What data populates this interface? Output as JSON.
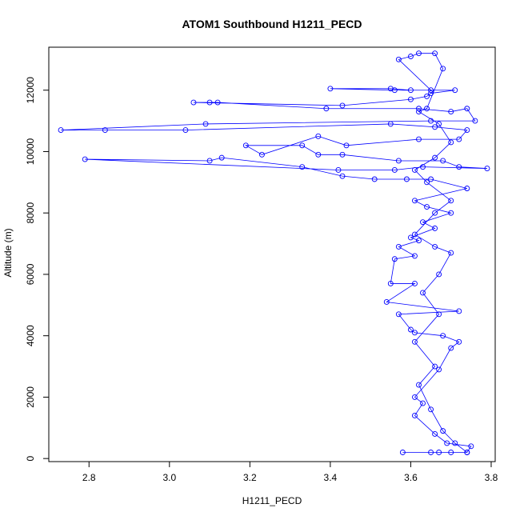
{
  "chart_data": {
    "type": "scatter",
    "title": "ATOM1 Southbound H1211_PECD",
    "xlabel": "H1211_PECD",
    "ylabel": "Altitude (m)",
    "xlim": [
      2.7,
      3.81
    ],
    "ylim": [
      -100,
      13400
    ],
    "x_ticks": [
      2.8,
      3.0,
      3.2,
      3.4,
      3.6,
      3.8
    ],
    "y_ticks": [
      0,
      2000,
      4000,
      6000,
      8000,
      10000,
      12000
    ],
    "x_tick_labels": [
      "2.8",
      "3.0",
      "3.2",
      "3.4",
      "3.6",
      "3.8"
    ],
    "y_tick_labels": [
      "0",
      "2000",
      "4000",
      "6000",
      "8000",
      "10000",
      "12000"
    ],
    "grid": false,
    "legend": "none",
    "series": [
      {
        "color": "#0000ff",
        "marker": "open-circle",
        "line": true,
        "points": [
          [
            3.58,
            200
          ],
          [
            3.65,
            200
          ],
          [
            3.67,
            200
          ],
          [
            3.7,
            200
          ],
          [
            3.74,
            200
          ],
          [
            3.75,
            400
          ],
          [
            3.69,
            500
          ],
          [
            3.66,
            800
          ],
          [
            3.61,
            1400
          ],
          [
            3.63,
            1800
          ],
          [
            3.61,
            2000
          ],
          [
            3.67,
            2900
          ],
          [
            3.7,
            3600
          ],
          [
            3.72,
            3800
          ],
          [
            3.68,
            4000
          ],
          [
            3.61,
            4100
          ],
          [
            3.6,
            4200
          ],
          [
            3.57,
            4700
          ],
          [
            3.72,
            4800
          ],
          [
            3.54,
            5100
          ],
          [
            3.61,
            5700
          ],
          [
            3.55,
            5700
          ],
          [
            3.56,
            6500
          ],
          [
            3.61,
            6600
          ],
          [
            3.57,
            6900
          ],
          [
            3.62,
            7100
          ],
          [
            3.6,
            7200
          ],
          [
            3.66,
            7500
          ],
          [
            3.63,
            7700
          ],
          [
            3.7,
            8000
          ],
          [
            3.64,
            8200
          ],
          [
            3.61,
            8400
          ],
          [
            3.74,
            8800
          ],
          [
            3.65,
            9100
          ],
          [
            3.59,
            9100
          ],
          [
            3.51,
            9100
          ],
          [
            3.43,
            9200
          ],
          [
            3.33,
            9500
          ],
          [
            3.13,
            9800
          ],
          [
            3.1,
            9700
          ],
          [
            2.79,
            9750
          ],
          [
            3.42,
            9400
          ],
          [
            3.56,
            9400
          ],
          [
            3.63,
            9500
          ],
          [
            3.79,
            9450
          ],
          [
            3.72,
            9500
          ],
          [
            3.68,
            9700
          ],
          [
            3.57,
            9700
          ],
          [
            3.43,
            9900
          ],
          [
            3.37,
            9900
          ],
          [
            3.33,
            10200
          ],
          [
            3.19,
            10200
          ],
          [
            3.23,
            9900
          ],
          [
            3.37,
            10500
          ],
          [
            3.44,
            10200
          ],
          [
            3.62,
            10400
          ],
          [
            3.72,
            10400
          ],
          [
            3.74,
            10700
          ],
          [
            3.66,
            10800
          ],
          [
            3.55,
            10900
          ],
          [
            3.04,
            10700
          ],
          [
            2.84,
            10700
          ],
          [
            2.73,
            10700
          ],
          [
            3.09,
            10900
          ],
          [
            3.65,
            11000
          ],
          [
            3.76,
            11000
          ],
          [
            3.74,
            11400
          ],
          [
            3.7,
            11300
          ],
          [
            3.62,
            11400
          ],
          [
            3.39,
            11400
          ],
          [
            3.12,
            11600
          ],
          [
            3.1,
            11600
          ],
          [
            3.06,
            11600
          ],
          [
            3.43,
            11500
          ],
          [
            3.6,
            11700
          ],
          [
            3.64,
            11800
          ],
          [
            3.65,
            11900
          ],
          [
            3.71,
            12000
          ],
          [
            3.6,
            12000
          ],
          [
            3.55,
            12050
          ],
          [
            3.4,
            12050
          ],
          [
            3.56,
            12000
          ],
          [
            3.65,
            12000
          ],
          [
            3.57,
            13000
          ],
          [
            3.6,
            13100
          ],
          [
            3.62,
            13200
          ],
          [
            3.66,
            13200
          ],
          [
            3.68,
            12700
          ],
          [
            3.64,
            11400
          ],
          [
            3.62,
            11300
          ],
          [
            3.67,
            10900
          ],
          [
            3.7,
            10300
          ],
          [
            3.66,
            9800
          ],
          [
            3.61,
            9400
          ],
          [
            3.64,
            9000
          ],
          [
            3.7,
            8400
          ],
          [
            3.66,
            8000
          ],
          [
            3.61,
            7300
          ],
          [
            3.66,
            6900
          ],
          [
            3.7,
            6700
          ],
          [
            3.67,
            6000
          ],
          [
            3.63,
            5400
          ],
          [
            3.67,
            4700
          ],
          [
            3.61,
            3800
          ],
          [
            3.66,
            3000
          ],
          [
            3.62,
            2400
          ],
          [
            3.65,
            1600
          ],
          [
            3.68,
            900
          ],
          [
            3.71,
            500
          ],
          [
            3.74,
            200
          ]
        ]
      }
    ]
  }
}
